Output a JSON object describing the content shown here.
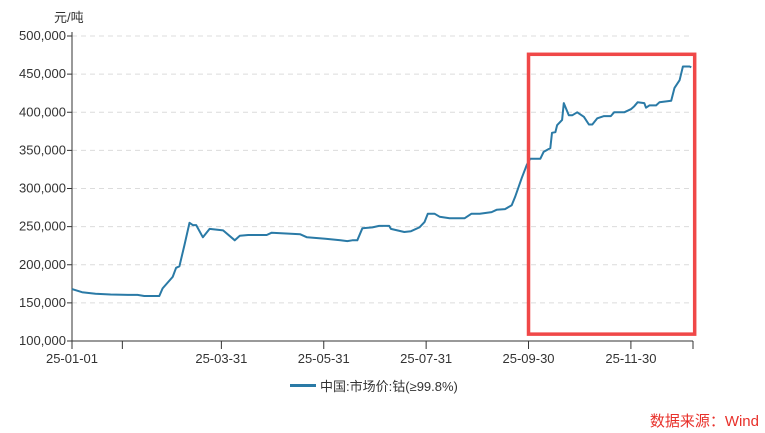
{
  "chart_data": {
    "type": "line",
    "unit_label": "元/吨",
    "ylim": [
      100000,
      500000
    ],
    "yticks": [
      100000,
      150000,
      200000,
      250000,
      300000,
      350000,
      400000,
      450000,
      500000
    ],
    "ytick_labels": [
      "100,000",
      "150,000",
      "200,000",
      "250,000",
      "300,000",
      "350,000",
      "400,000",
      "450,000",
      "500,000"
    ],
    "xlim": [
      "2025-01-01",
      "2026-01-06"
    ],
    "xticks": [
      "2025-01-01",
      "2025-01-31",
      "2025-03-31",
      "2025-05-31",
      "2025-07-31",
      "2025-09-30",
      "2025-11-30",
      "2026-01-06"
    ],
    "xtick_labels": [
      "25-01-01",
      "",
      "25-03-31",
      "25-05-31",
      "25-07-31",
      "25-09-30",
      "25-11-30",
      ""
    ],
    "grid": "horizontal dashed",
    "legend_position": "bottom",
    "series": [
      {
        "name": "中国:市场价:钴(≥99.8%)",
        "color": "#2a7aa6",
        "points": [
          [
            "2025-01-01",
            168000
          ],
          [
            "2025-01-07",
            164000
          ],
          [
            "2025-01-15",
            162000
          ],
          [
            "2025-01-24",
            161000
          ],
          [
            "2025-02-05",
            160500
          ],
          [
            "2025-02-09",
            160500
          ],
          [
            "2025-02-13",
            159000
          ],
          [
            "2025-02-22",
            159000
          ],
          [
            "2025-02-24",
            169000
          ],
          [
            "2025-03-02",
            184000
          ],
          [
            "2025-03-04",
            196000
          ],
          [
            "2025-03-06",
            198000
          ],
          [
            "2025-03-09",
            226000
          ],
          [
            "2025-03-12",
            255000
          ],
          [
            "2025-03-14",
            252000
          ],
          [
            "2025-03-16",
            252000
          ],
          [
            "2025-03-20",
            236000
          ],
          [
            "2025-03-24",
            247000
          ],
          [
            "2025-04-01",
            245000
          ],
          [
            "2025-04-08",
            232000
          ],
          [
            "2025-04-11",
            238000
          ],
          [
            "2025-04-16",
            239000
          ],
          [
            "2025-04-27",
            239000
          ],
          [
            "2025-04-30",
            242000
          ],
          [
            "2025-05-17",
            240000
          ],
          [
            "2025-05-21",
            236000
          ],
          [
            "2025-06-01",
            234000
          ],
          [
            "2025-06-10",
            232000
          ],
          [
            "2025-06-14",
            231000
          ],
          [
            "2025-06-17",
            232000
          ],
          [
            "2025-06-20",
            232000
          ],
          [
            "2025-06-23",
            248000
          ],
          [
            "2025-06-29",
            249000
          ],
          [
            "2025-07-03",
            251000
          ],
          [
            "2025-07-09",
            251000
          ],
          [
            "2025-07-10",
            247000
          ],
          [
            "2025-07-18",
            243000
          ],
          [
            "2025-07-22",
            244000
          ],
          [
            "2025-07-27",
            249000
          ],
          [
            "2025-07-30",
            256000
          ],
          [
            "2025-08-01",
            267000
          ],
          [
            "2025-08-05",
            267000
          ],
          [
            "2025-08-08",
            263000
          ],
          [
            "2025-08-14",
            261000
          ],
          [
            "2025-08-23",
            261000
          ],
          [
            "2025-08-27",
            267000
          ],
          [
            "2025-09-01",
            267000
          ],
          [
            "2025-09-08",
            269000
          ],
          [
            "2025-09-11",
            272000
          ],
          [
            "2025-09-16",
            273000
          ],
          [
            "2025-09-20",
            278000
          ],
          [
            "2025-09-22",
            289000
          ],
          [
            "2025-09-26",
            314000
          ],
          [
            "2025-09-29",
            331000
          ],
          [
            "2025-10-01",
            339000
          ],
          [
            "2025-10-07",
            339000
          ],
          [
            "2025-10-09",
            348000
          ],
          [
            "2025-10-13",
            353000
          ],
          [
            "2025-10-14",
            373000
          ],
          [
            "2025-10-16",
            374000
          ],
          [
            "2025-10-17",
            383000
          ],
          [
            "2025-10-20",
            390000
          ],
          [
            "2025-10-21",
            412000
          ],
          [
            "2025-10-24",
            396000
          ],
          [
            "2025-10-26",
            396000
          ],
          [
            "2025-10-29",
            400000
          ],
          [
            "2025-11-02",
            394000
          ],
          [
            "2025-11-05",
            384000
          ],
          [
            "2025-11-07",
            384000
          ],
          [
            "2025-11-10",
            392000
          ],
          [
            "2025-11-14",
            395000
          ],
          [
            "2025-11-18",
            395000
          ],
          [
            "2025-11-20",
            400000
          ],
          [
            "2025-11-26",
            400000
          ],
          [
            "2025-11-30",
            404000
          ],
          [
            "2025-12-02",
            408000
          ],
          [
            "2025-12-04",
            413000
          ],
          [
            "2025-12-08",
            412000
          ],
          [
            "2025-12-09",
            406000
          ],
          [
            "2025-12-11",
            409000
          ],
          [
            "2025-12-15",
            409000
          ],
          [
            "2025-12-17",
            413000
          ],
          [
            "2025-12-24",
            415000
          ],
          [
            "2025-12-26",
            432000
          ],
          [
            "2025-12-29",
            442000
          ],
          [
            "2025-12-31",
            460000
          ],
          [
            "2026-01-04",
            460000
          ],
          [
            "2026-01-05",
            459000
          ]
        ]
      }
    ],
    "highlight_box": {
      "color": "#f04848",
      "x_range": [
        "2025-09-30",
        "2026-01-07"
      ],
      "y_range": [
        109000,
        476000
      ]
    }
  },
  "source_text": "数据来源：Wind"
}
